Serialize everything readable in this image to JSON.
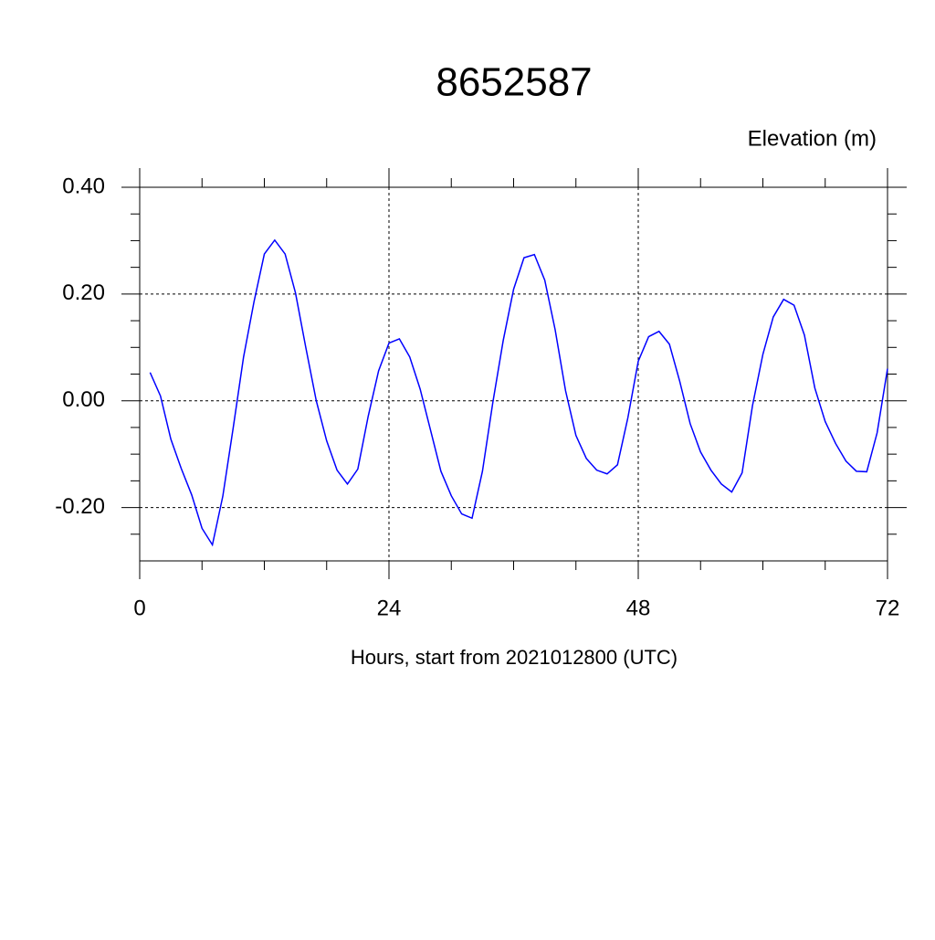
{
  "chart_data": {
    "type": "line",
    "title": "8652587",
    "y_label": "Elevation (m)",
    "x_label": "Hours, start from 2021012800 (UTC)",
    "x": [
      1,
      2,
      3,
      4,
      5,
      6,
      7,
      8,
      9,
      10,
      11,
      12,
      13,
      14,
      15,
      16,
      17,
      18,
      19,
      20,
      21,
      22,
      23,
      24,
      25,
      26,
      27,
      28,
      29,
      30,
      31,
      32,
      33,
      34,
      35,
      36,
      37,
      38,
      39,
      40,
      41,
      42,
      43,
      44,
      45,
      46,
      47,
      48,
      49,
      50,
      51,
      52,
      53,
      54,
      55,
      56,
      57,
      58,
      59,
      60,
      61,
      62,
      63,
      64,
      65,
      66,
      67,
      68,
      69,
      70,
      71,
      72
    ],
    "series": [
      {
        "color": "#0000ff",
        "values": [
          0.053,
          0.009,
          -0.072,
          -0.127,
          -0.176,
          -0.239,
          -0.27,
          -0.179,
          -0.051,
          0.082,
          0.185,
          0.275,
          0.301,
          0.275,
          0.202,
          0.099,
          0.0,
          -0.075,
          -0.13,
          -0.156,
          -0.128,
          -0.029,
          0.056,
          0.108,
          0.116,
          0.082,
          0.022,
          -0.055,
          -0.132,
          -0.178,
          -0.212,
          -0.22,
          -0.132,
          -0.003,
          0.113,
          0.209,
          0.268,
          0.274,
          0.226,
          0.133,
          0.019,
          -0.065,
          -0.108,
          -0.13,
          -0.137,
          -0.12,
          -0.032,
          0.074,
          0.12,
          0.13,
          0.106,
          0.036,
          -0.043,
          -0.096,
          -0.13,
          -0.156,
          -0.171,
          -0.135,
          -0.009,
          0.087,
          0.157,
          0.19,
          0.179,
          0.123,
          0.024,
          -0.039,
          -0.08,
          -0.113,
          -0.132,
          -0.133,
          -0.06,
          0.06
        ]
      }
    ],
    "xlim": [
      0,
      72
    ],
    "ylim": [
      -0.3,
      0.4
    ],
    "xticks": [
      0,
      24,
      48,
      72
    ],
    "yticks": [
      {
        "value": -0.2,
        "label": "-0.20"
      },
      {
        "value": 0,
        "label": "0.00"
      },
      {
        "value": 0.2,
        "label": "0.20"
      },
      {
        "value": 0.4,
        "label": "0.40"
      }
    ],
    "xminorticks": [
      6,
      12,
      18,
      30,
      36,
      42,
      54,
      60,
      66
    ],
    "yminorticks": [
      -0.25,
      -0.15,
      -0.1,
      -0.05,
      0.05,
      0.1,
      0.15,
      0.25,
      0.3,
      0.35
    ],
    "grid": true
  }
}
